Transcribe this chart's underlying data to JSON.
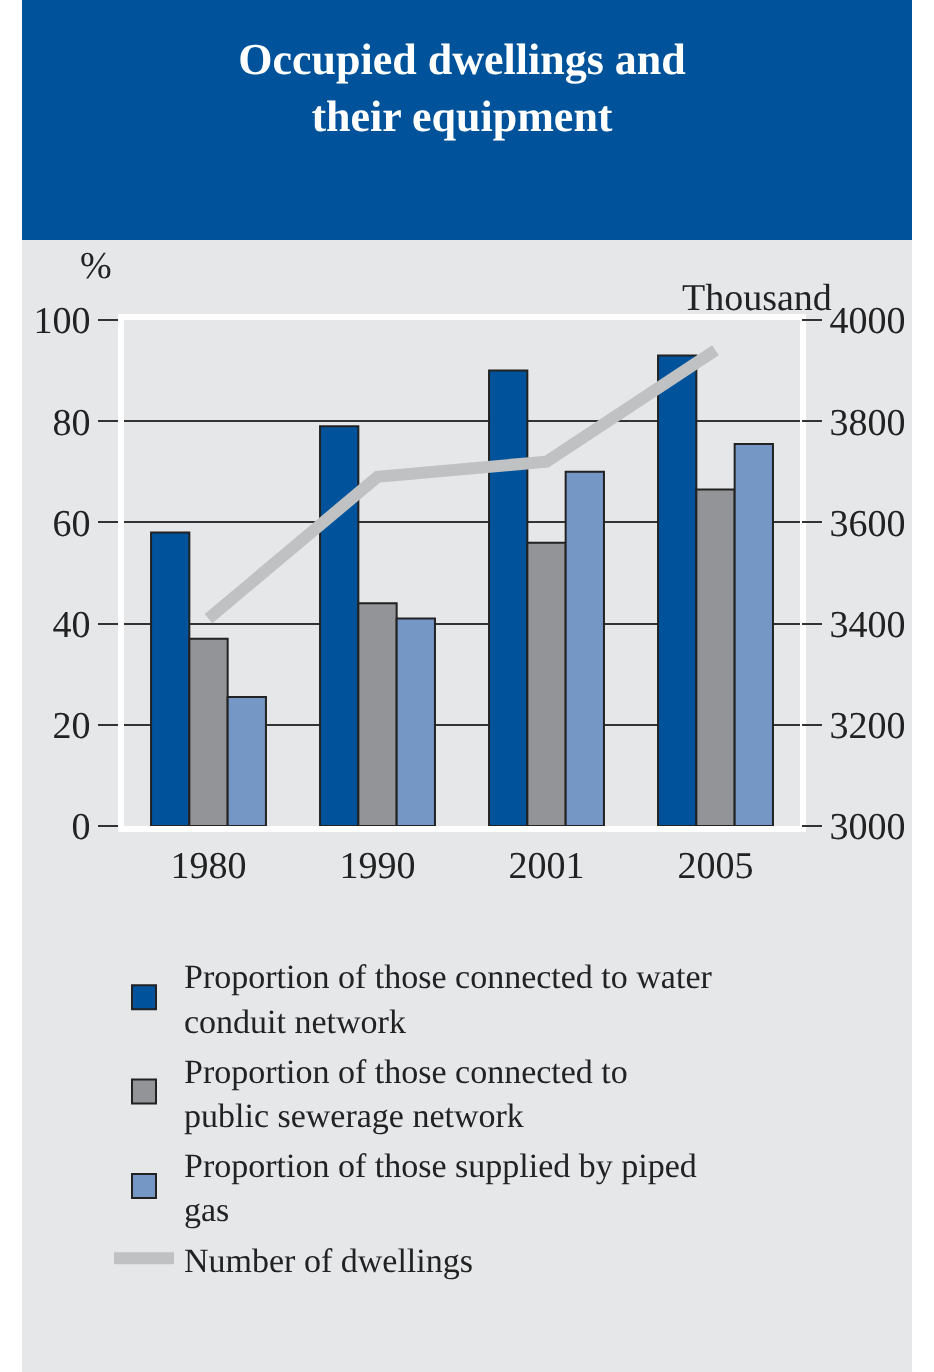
{
  "chart_data": {
    "type": "bar",
    "title": "Occupied dwellings and their equipment",
    "ylabel": "%",
    "y2label": "Thousand",
    "categories": [
      "1980",
      "1990",
      "2001",
      "2005"
    ],
    "series": [
      {
        "name": "Proportion of those connected to water conduit network",
        "color": "#00539b",
        "values": [
          58,
          79,
          90,
          93
        ]
      },
      {
        "name": "Proportion of those connected to public sewerage network",
        "color": "#929497",
        "values": [
          37,
          44,
          56,
          66.5
        ]
      },
      {
        "name": "Proportion of those supplied by piped gas",
        "color": "#7597c6",
        "values": [
          25.5,
          41,
          70,
          75.5
        ]
      },
      {
        "name": "Number of dwellings",
        "type": "line",
        "axis": "y2",
        "color": "#c0c1c3",
        "values": [
          3410,
          3690,
          3720,
          3940
        ]
      }
    ],
    "ylim": [
      0,
      100
    ],
    "yticks": [
      0,
      20,
      40,
      60,
      80,
      100
    ],
    "y2lim": [
      3000,
      4000
    ],
    "y2ticks": [
      3000,
      3200,
      3400,
      3600,
      3800,
      4000
    ],
    "grid": "y",
    "legend": "bottom",
    "marker": "none"
  }
}
